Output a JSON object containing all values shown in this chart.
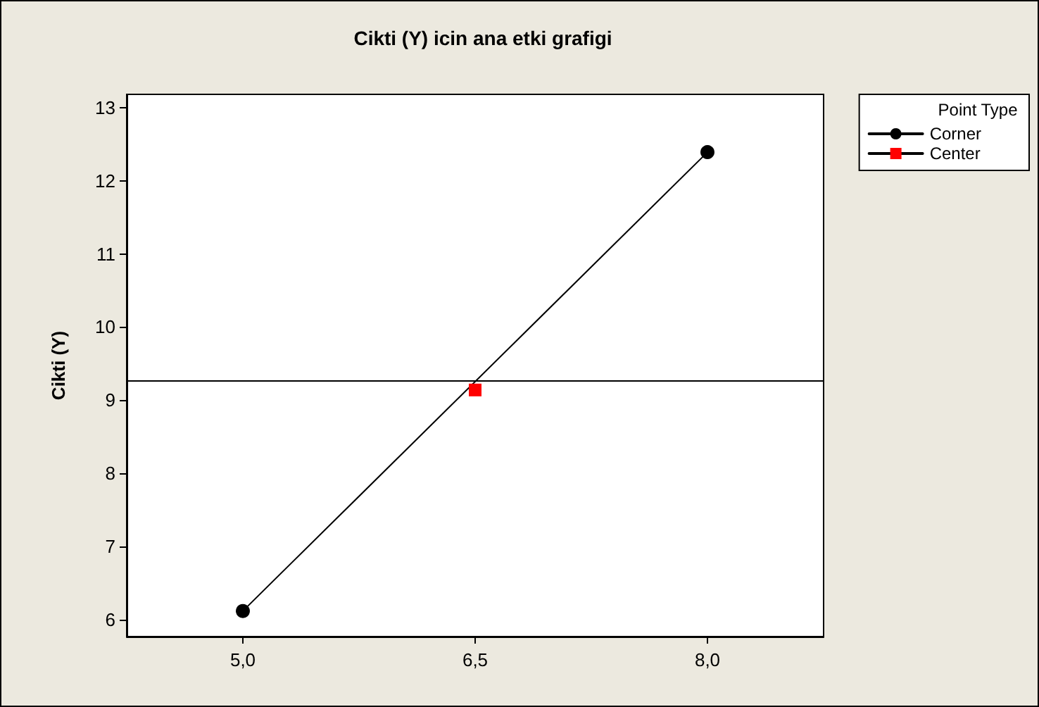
{
  "chart_data": {
    "type": "line",
    "title": "Cikti (Y) icin ana etki grafigi",
    "ylabel": "Cikti (Y)",
    "legend_title": "Point Type",
    "legend": "top right",
    "grid": false,
    "line_style": "solid",
    "xlim": [
      4.25,
      8.75
    ],
    "xticks": [
      {
        "value": 5,
        "label": "5,0"
      },
      {
        "value": 6.5,
        "label": "6,5"
      },
      {
        "value": 8,
        "label": "8,0"
      }
    ],
    "ylim": [
      5.77,
      13.18
    ],
    "yticks": [
      6,
      7,
      8,
      9,
      10,
      11,
      12,
      13
    ],
    "series": [
      {
        "name": "Corner",
        "color": "#000000",
        "marker": "circle",
        "x": [
          5,
          8
        ],
        "values": [
          6.12,
          12.39
        ]
      },
      {
        "name": "Center",
        "color": "#ff0000",
        "marker": "square",
        "x": [
          6.5
        ],
        "values": [
          9.14
        ]
      }
    ],
    "ref_lines": [
      {
        "axis": "y",
        "value": 9.26,
        "color": "#000000"
      }
    ]
  }
}
